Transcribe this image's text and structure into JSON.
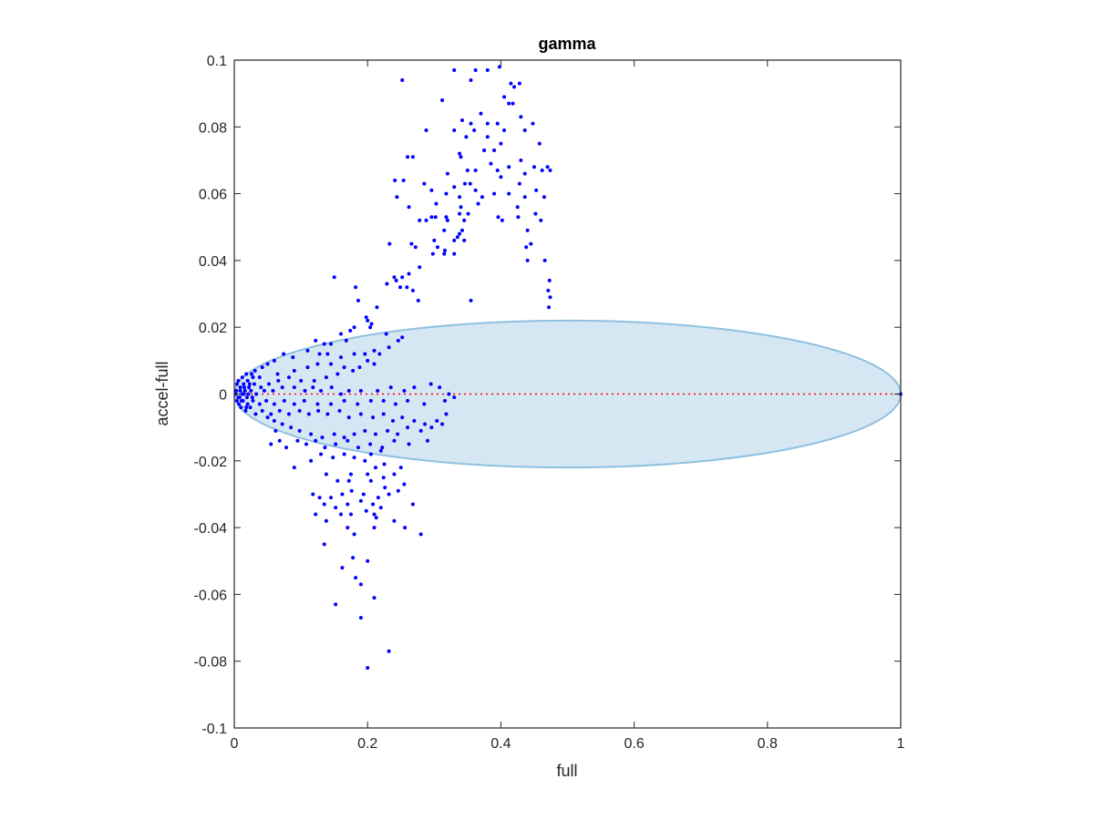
{
  "chart_data": {
    "type": "scatter",
    "title": "gamma",
    "xlabel": "full",
    "ylabel": "accel-full",
    "xlim": [
      0,
      1
    ],
    "ylim": [
      -0.1,
      0.1
    ],
    "x_ticks": [
      "0",
      "0.2",
      "0.4",
      "0.6",
      "0.8",
      "1"
    ],
    "y_ticks": [
      "0.1",
      "0.08",
      "0.06",
      "0.04",
      "0.02",
      "0",
      "-0.02",
      "-0.04",
      "-0.06",
      "-0.08",
      "-0.1"
    ],
    "grid": false,
    "colors": {
      "points": "#0000ff",
      "ellipse_fill": "#d6e7f4",
      "ellipse_stroke": "#8fc0e0",
      "reference_line": "#ff0000"
    },
    "ellipse": {
      "center_x": 0.5,
      "center_y": 0,
      "radius_x": 0.5,
      "radius_y": 0.022
    },
    "reference_line": {
      "y": 0,
      "x_range": [
        0,
        1
      ]
    },
    "points": [
      [
        0.252,
        0.094
      ],
      [
        0.33,
        0.097
      ],
      [
        0.362,
        0.097
      ],
      [
        0.38,
        0.097
      ],
      [
        0.398,
        0.098
      ],
      [
        0.312,
        0.088
      ],
      [
        0.355,
        0.094
      ],
      [
        0.415,
        0.093
      ],
      [
        0.42,
        0.092
      ],
      [
        0.428,
        0.093
      ],
      [
        0.405,
        0.089
      ],
      [
        0.412,
        0.087
      ],
      [
        0.418,
        0.087
      ],
      [
        0.37,
        0.084
      ],
      [
        0.342,
        0.082
      ],
      [
        0.355,
        0.081
      ],
      [
        0.38,
        0.081
      ],
      [
        0.395,
        0.081
      ],
      [
        0.43,
        0.083
      ],
      [
        0.448,
        0.081
      ],
      [
        0.288,
        0.079
      ],
      [
        0.33,
        0.079
      ],
      [
        0.36,
        0.079
      ],
      [
        0.405,
        0.079
      ],
      [
        0.436,
        0.079
      ],
      [
        0.348,
        0.077
      ],
      [
        0.38,
        0.077
      ],
      [
        0.4,
        0.075
      ],
      [
        0.375,
        0.073
      ],
      [
        0.39,
        0.073
      ],
      [
        0.458,
        0.075
      ],
      [
        0.338,
        0.072
      ],
      [
        0.34,
        0.071
      ],
      [
        0.26,
        0.071
      ],
      [
        0.268,
        0.071
      ],
      [
        0.385,
        0.069
      ],
      [
        0.43,
        0.07
      ],
      [
        0.35,
        0.067
      ],
      [
        0.362,
        0.067
      ],
      [
        0.395,
        0.067
      ],
      [
        0.32,
        0.066
      ],
      [
        0.412,
        0.068
      ],
      [
        0.436,
        0.066
      ],
      [
        0.45,
        0.068
      ],
      [
        0.462,
        0.067
      ],
      [
        0.47,
        0.068
      ],
      [
        0.474,
        0.067
      ],
      [
        0.4,
        0.065
      ],
      [
        0.241,
        0.064
      ],
      [
        0.254,
        0.064
      ],
      [
        0.285,
        0.063
      ],
      [
        0.33,
        0.062
      ],
      [
        0.346,
        0.063
      ],
      [
        0.354,
        0.063
      ],
      [
        0.428,
        0.063
      ],
      [
        0.453,
        0.061
      ],
      [
        0.465,
        0.059
      ],
      [
        0.296,
        0.061
      ],
      [
        0.318,
        0.06
      ],
      [
        0.39,
        0.06
      ],
      [
        0.244,
        0.059
      ],
      [
        0.338,
        0.059
      ],
      [
        0.362,
        0.061
      ],
      [
        0.412,
        0.06
      ],
      [
        0.436,
        0.059
      ],
      [
        0.303,
        0.057
      ],
      [
        0.34,
        0.056
      ],
      [
        0.366,
        0.057
      ],
      [
        0.372,
        0.059
      ],
      [
        0.425,
        0.056
      ],
      [
        0.262,
        0.056
      ],
      [
        0.296,
        0.053
      ],
      [
        0.318,
        0.053
      ],
      [
        0.338,
        0.054
      ],
      [
        0.351,
        0.054
      ],
      [
        0.278,
        0.052
      ],
      [
        0.288,
        0.052
      ],
      [
        0.302,
        0.053
      ],
      [
        0.32,
        0.052
      ],
      [
        0.345,
        0.052
      ],
      [
        0.396,
        0.053
      ],
      [
        0.402,
        0.052
      ],
      [
        0.426,
        0.053
      ],
      [
        0.452,
        0.054
      ],
      [
        0.46,
        0.052
      ],
      [
        0.315,
        0.049
      ],
      [
        0.3,
        0.046
      ],
      [
        0.342,
        0.049
      ],
      [
        0.33,
        0.046
      ],
      [
        0.335,
        0.047
      ],
      [
        0.338,
        0.048
      ],
      [
        0.44,
        0.049
      ],
      [
        0.345,
        0.046
      ],
      [
        0.266,
        0.045
      ],
      [
        0.233,
        0.045
      ],
      [
        0.305,
        0.044
      ],
      [
        0.316,
        0.043
      ],
      [
        0.272,
        0.044
      ],
      [
        0.438,
        0.044
      ],
      [
        0.445,
        0.045
      ],
      [
        0.33,
        0.042
      ],
      [
        0.315,
        0.042
      ],
      [
        0.298,
        0.042
      ],
      [
        0.44,
        0.04
      ],
      [
        0.466,
        0.04
      ],
      [
        0.278,
        0.038
      ],
      [
        0.262,
        0.036
      ],
      [
        0.252,
        0.035
      ],
      [
        0.24,
        0.035
      ],
      [
        0.15,
        0.035
      ],
      [
        0.243,
        0.034
      ],
      [
        0.229,
        0.033
      ],
      [
        0.249,
        0.032
      ],
      [
        0.259,
        0.032
      ],
      [
        0.268,
        0.031
      ],
      [
        0.473,
        0.034
      ],
      [
        0.471,
        0.031
      ],
      [
        0.474,
        0.029
      ],
      [
        0.472,
        0.026
      ],
      [
        0.355,
        0.028
      ],
      [
        0.276,
        0.028
      ],
      [
        0.182,
        0.032
      ],
      [
        0.198,
        0.023
      ],
      [
        0.206,
        0.021
      ],
      [
        0.2,
        0.022
      ],
      [
        0.214,
        0.026
      ],
      [
        0.186,
        0.028
      ],
      [
        0.204,
        0.02
      ],
      [
        0.18,
        0.02
      ],
      [
        0.168,
        0.016
      ],
      [
        0.145,
        0.015
      ],
      [
        0.135,
        0.015
      ],
      [
        0.122,
        0.016
      ],
      [
        0.16,
        0.018
      ],
      [
        0.174,
        0.019
      ],
      [
        0.228,
        0.018
      ],
      [
        0.252,
        0.017
      ],
      [
        0.246,
        0.016
      ],
      [
        0.232,
        0.014
      ],
      [
        0.21,
        0.013
      ],
      [
        0.196,
        0.012
      ],
      [
        0.18,
        0.012
      ],
      [
        0.16,
        0.011
      ],
      [
        0.14,
        0.012
      ],
      [
        0.128,
        0.012
      ],
      [
        0.11,
        0.013
      ],
      [
        0.088,
        0.011
      ],
      [
        0.074,
        0.012
      ],
      [
        0.06,
        0.01
      ],
      [
        0.05,
        0.009
      ],
      [
        0.042,
        0.008
      ],
      [
        0.031,
        0.007
      ],
      [
        0.026,
        0.006
      ],
      [
        0.018,
        0.006
      ],
      [
        0.012,
        0.005
      ],
      [
        0.006,
        0.004
      ],
      [
        0.004,
        0.003
      ],
      [
        0.02,
        0.004
      ],
      [
        0.028,
        0.005
      ],
      [
        0.038,
        0.005
      ],
      [
        0.065,
        0.006
      ],
      [
        0.09,
        0.007
      ],
      [
        0.11,
        0.008
      ],
      [
        0.125,
        0.009
      ],
      [
        0.145,
        0.009
      ],
      [
        0.165,
        0.008
      ],
      [
        0.188,
        0.008
      ],
      [
        0.21,
        0.009
      ],
      [
        0.218,
        0.012
      ],
      [
        0.2,
        0.01
      ],
      [
        0.178,
        0.007
      ],
      [
        0.155,
        0.006
      ],
      [
        0.138,
        0.005
      ],
      [
        0.12,
        0.004
      ],
      [
        0.1,
        0.004
      ],
      [
        0.082,
        0.005
      ],
      [
        0.066,
        0.004
      ],
      [
        0.052,
        0.003
      ],
      [
        0.04,
        0.002
      ],
      [
        0.03,
        0.003
      ],
      [
        0.022,
        0.002
      ],
      [
        0.015,
        0.002
      ],
      [
        0.009,
        0.002
      ],
      [
        0.003,
        0.001
      ],
      [
        0.002,
        0.0
      ],
      [
        0.008,
        -0.001
      ],
      [
        0.014,
        0.0
      ],
      [
        0.019,
        -0.001
      ],
      [
        0.025,
        0.001
      ],
      [
        0.033,
        0.0
      ],
      [
        0.045,
        0.001
      ],
      [
        0.058,
        0.001
      ],
      [
        0.072,
        0.002
      ],
      [
        0.09,
        0.002
      ],
      [
        0.106,
        0.001
      ],
      [
        0.118,
        0.002
      ],
      [
        0.13,
        0.001
      ],
      [
        0.146,
        0.002
      ],
      [
        0.16,
        0.0
      ],
      [
        0.172,
        0.001
      ],
      [
        0.19,
        0.001
      ],
      [
        0.215,
        0.001
      ],
      [
        0.235,
        0.002
      ],
      [
        0.255,
        0.001
      ],
      [
        0.27,
        0.002
      ],
      [
        0.295,
        0.003
      ],
      [
        0.308,
        0.002
      ],
      [
        0.322,
        0.0
      ],
      [
        0.33,
        -0.001
      ],
      [
        0.316,
        -0.002
      ],
      [
        0.285,
        -0.003
      ],
      [
        0.26,
        -0.002
      ],
      [
        0.242,
        -0.003
      ],
      [
        0.224,
        -0.002
      ],
      [
        0.205,
        -0.002
      ],
      [
        0.185,
        -0.003
      ],
      [
        0.165,
        -0.002
      ],
      [
        0.145,
        -0.003
      ],
      [
        0.125,
        -0.003
      ],
      [
        0.105,
        -0.002
      ],
      [
        0.09,
        -0.003
      ],
      [
        0.075,
        -0.002
      ],
      [
        0.06,
        -0.003
      ],
      [
        0.048,
        -0.002
      ],
      [
        0.038,
        -0.003
      ],
      [
        0.028,
        -0.002
      ],
      [
        0.02,
        -0.003
      ],
      [
        0.013,
        -0.002
      ],
      [
        0.007,
        -0.003
      ],
      [
        0.004,
        -0.002
      ],
      [
        0.01,
        -0.004
      ],
      [
        0.017,
        -0.005
      ],
      [
        0.024,
        -0.004
      ],
      [
        0.032,
        -0.006
      ],
      [
        0.042,
        -0.005
      ],
      [
        0.055,
        -0.006
      ],
      [
        0.068,
        -0.005
      ],
      [
        0.082,
        -0.006
      ],
      [
        0.098,
        -0.005
      ],
      [
        0.112,
        -0.006
      ],
      [
        0.126,
        -0.005
      ],
      [
        0.14,
        -0.006
      ],
      [
        0.158,
        -0.005
      ],
      [
        0.172,
        -0.007
      ],
      [
        0.19,
        -0.006
      ],
      [
        0.208,
        -0.007
      ],
      [
        0.224,
        -0.006
      ],
      [
        0.238,
        -0.008
      ],
      [
        0.252,
        -0.007
      ],
      [
        0.27,
        -0.008
      ],
      [
        0.286,
        -0.009
      ],
      [
        0.304,
        -0.008
      ],
      [
        0.318,
        -0.006
      ],
      [
        0.312,
        -0.009
      ],
      [
        0.296,
        -0.01
      ],
      [
        0.28,
        -0.011
      ],
      [
        0.26,
        -0.01
      ],
      [
        0.245,
        -0.012
      ],
      [
        0.23,
        -0.011
      ],
      [
        0.212,
        -0.012
      ],
      [
        0.196,
        -0.011
      ],
      [
        0.18,
        -0.012
      ],
      [
        0.165,
        -0.013
      ],
      [
        0.15,
        -0.012
      ],
      [
        0.132,
        -0.013
      ],
      [
        0.115,
        -0.012
      ],
      [
        0.098,
        -0.011
      ],
      [
        0.085,
        -0.01
      ],
      [
        0.072,
        -0.009
      ],
      [
        0.06,
        -0.008
      ],
      [
        0.05,
        -0.007
      ],
      [
        0.062,
        -0.011
      ],
      [
        0.055,
        -0.015
      ],
      [
        0.068,
        -0.014
      ],
      [
        0.078,
        -0.016
      ],
      [
        0.095,
        -0.014
      ],
      [
        0.108,
        -0.015
      ],
      [
        0.122,
        -0.014
      ],
      [
        0.136,
        -0.016
      ],
      [
        0.152,
        -0.015
      ],
      [
        0.17,
        -0.014
      ],
      [
        0.186,
        -0.016
      ],
      [
        0.204,
        -0.015
      ],
      [
        0.222,
        -0.016
      ],
      [
        0.24,
        -0.014
      ],
      [
        0.262,
        -0.015
      ],
      [
        0.29,
        -0.014
      ],
      [
        0.22,
        -0.017
      ],
      [
        0.205,
        -0.018
      ],
      [
        0.196,
        -0.02
      ],
      [
        0.18,
        -0.019
      ],
      [
        0.165,
        -0.018
      ],
      [
        0.148,
        -0.019
      ],
      [
        0.13,
        -0.018
      ],
      [
        0.115,
        -0.02
      ],
      [
        0.09,
        -0.022
      ],
      [
        0.225,
        -0.021
      ],
      [
        0.212,
        -0.022
      ],
      [
        0.25,
        -0.022
      ],
      [
        0.24,
        -0.024
      ],
      [
        0.224,
        -0.025
      ],
      [
        0.205,
        -0.026
      ],
      [
        0.2,
        -0.024
      ],
      [
        0.175,
        -0.024
      ],
      [
        0.172,
        -0.026
      ],
      [
        0.155,
        -0.026
      ],
      [
        0.138,
        -0.024
      ],
      [
        0.226,
        -0.028
      ],
      [
        0.232,
        -0.03
      ],
      [
        0.216,
        -0.031
      ],
      [
        0.194,
        -0.03
      ],
      [
        0.176,
        -0.029
      ],
      [
        0.162,
        -0.03
      ],
      [
        0.145,
        -0.031
      ],
      [
        0.128,
        -0.031
      ],
      [
        0.118,
        -0.03
      ],
      [
        0.246,
        -0.029
      ],
      [
        0.255,
        -0.027
      ],
      [
        0.22,
        -0.034
      ],
      [
        0.208,
        -0.033
      ],
      [
        0.19,
        -0.032
      ],
      [
        0.17,
        -0.033
      ],
      [
        0.152,
        -0.034
      ],
      [
        0.135,
        -0.033
      ],
      [
        0.268,
        -0.033
      ],
      [
        0.21,
        -0.036
      ],
      [
        0.213,
        -0.037
      ],
      [
        0.198,
        -0.035
      ],
      [
        0.175,
        -0.036
      ],
      [
        0.16,
        -0.036
      ],
      [
        0.138,
        -0.038
      ],
      [
        0.122,
        -0.036
      ],
      [
        0.24,
        -0.038
      ],
      [
        0.256,
        -0.04
      ],
      [
        0.28,
        -0.042
      ],
      [
        0.21,
        -0.04
      ],
      [
        0.18,
        -0.042
      ],
      [
        0.17,
        -0.04
      ],
      [
        0.135,
        -0.045
      ],
      [
        0.178,
        -0.049
      ],
      [
        0.2,
        -0.05
      ],
      [
        0.162,
        -0.052
      ],
      [
        0.182,
        -0.055
      ],
      [
        0.19,
        -0.057
      ],
      [
        0.21,
        -0.061
      ],
      [
        0.152,
        -0.063
      ],
      [
        0.19,
        -0.067
      ],
      [
        0.232,
        -0.077
      ],
      [
        0.2,
        -0.082
      ],
      [
        1.0,
        0.0
      ],
      [
        0.012,
        0.0
      ],
      [
        0.016,
        0.001
      ],
      [
        0.009,
        0.001
      ],
      [
        0.006,
        -0.001
      ],
      [
        0.011,
        -0.002
      ],
      [
        0.014,
        0.003
      ],
      [
        0.021,
        0.0
      ],
      [
        0.018,
        -0.004
      ],
      [
        0.023,
        0.003
      ],
      [
        0.027,
        -0.001
      ]
    ]
  }
}
